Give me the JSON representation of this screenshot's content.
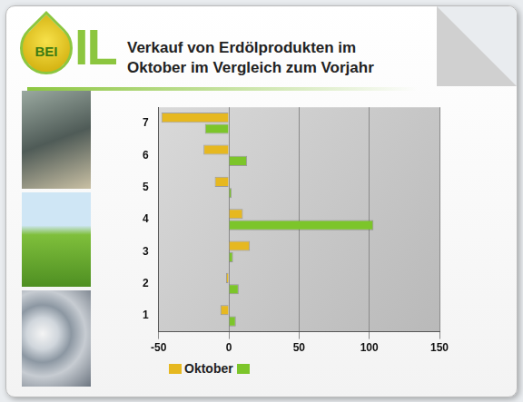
{
  "logo": {
    "drop_text": "BEI",
    "text": "IL"
  },
  "chart_data": {
    "type": "bar",
    "orientation": "horizontal",
    "title": "Verkauf von Erdölprodukten im Oktober im Vergleich zum Vorjahr",
    "categories": [
      "1",
      "2",
      "3",
      "4",
      "5",
      "6",
      "7"
    ],
    "series": [
      {
        "name": "Oktober",
        "color": "#e6b820",
        "values": [
          -6,
          -2,
          15,
          10,
          -10,
          -18,
          -48
        ]
      },
      {
        "name": null,
        "color": "#7cc52a",
        "values": [
          5,
          7,
          3,
          103,
          2,
          13,
          -17
        ]
      }
    ],
    "xlim": [
      -50,
      150
    ],
    "xticks": [
      -50,
      0,
      50,
      100,
      150
    ],
    "grid": true,
    "legend": "bottom"
  }
}
